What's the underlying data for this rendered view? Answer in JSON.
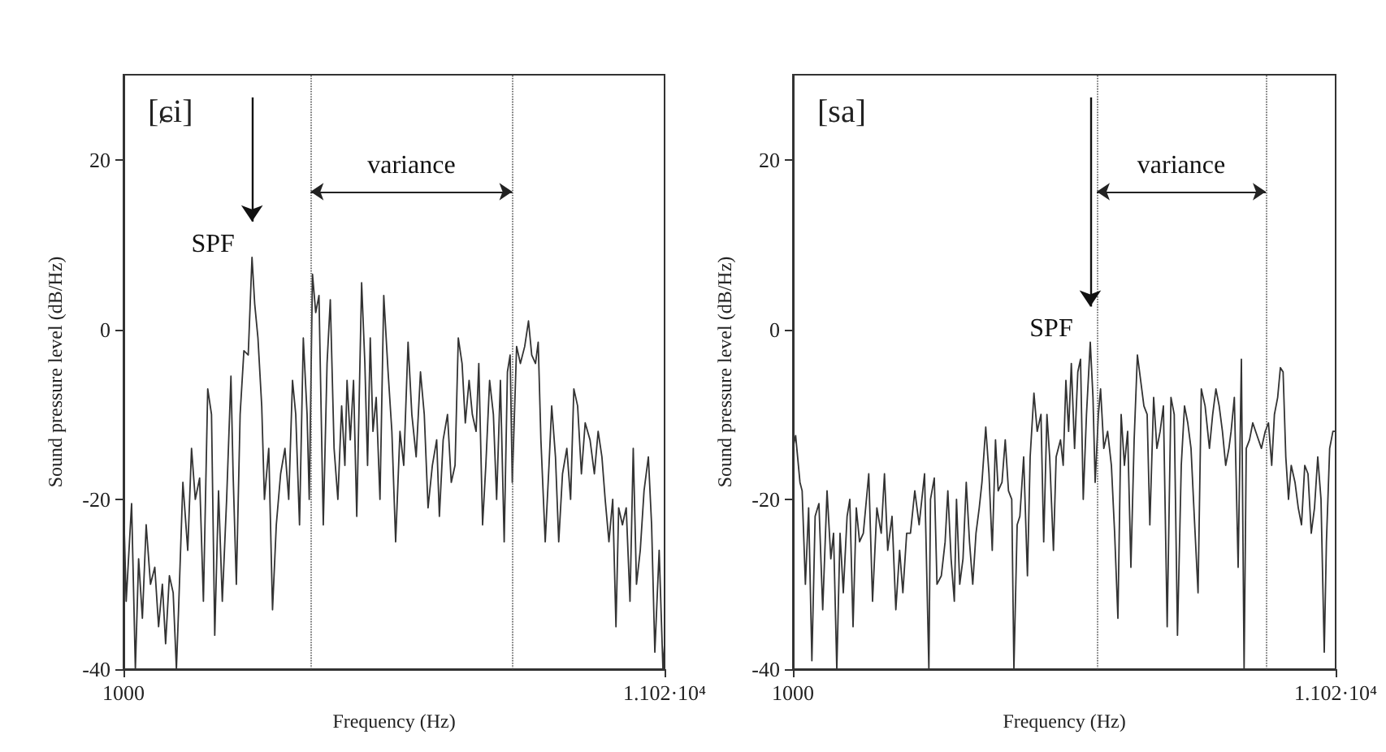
{
  "chart_data": [
    {
      "type": "line",
      "title": "[ɕi]",
      "xlabel": "Frequency (Hz)",
      "ylabel": "Sound pressure level (dB/Hz)",
      "marker": "none",
      "line_style": "solid",
      "xlim": [
        1000,
        11020
      ],
      "ylim": [
        -40,
        30
      ],
      "xticks": [
        1000,
        {
          "value": 11020,
          "label": "1.102·10⁴"
        }
      ],
      "yticks": [
        -40,
        -20,
        0,
        20
      ],
      "x": [
        1000,
        1050,
        1150,
        1220,
        1280,
        1350,
        1420,
        1500,
        1580,
        1650,
        1720,
        1780,
        1850,
        1920,
        1980,
        2020,
        2100,
        2190,
        2260,
        2330,
        2410,
        2480,
        2560,
        2630,
        2690,
        2760,
        2830,
        2910,
        2990,
        3030,
        3090,
        3160,
        3230,
        3310,
        3380,
        3430,
        3490,
        3560,
        3610,
        3690,
        3760,
        3830,
        3910,
        3990,
        4060,
        4130,
        4190,
        4260,
        4330,
        4400,
        4440,
        4500,
        4560,
        4620,
        4700,
        4770,
        4830,
        4900,
        4970,
        5040,
        5100,
        5140,
        5200,
        5260,
        5320,
        5410,
        5470,
        5520,
        5570,
        5620,
        5680,
        5750,
        5820,
        5900,
        5970,
        6040,
        6120,
        6190,
        6270,
        6340,
        6420,
        6500,
        6570,
        6640,
        6720,
        6800,
        6850,
        6920,
        7000,
        7070,
        7140,
        7200,
        7270,
        7330,
        7400,
        7460,
        7530,
        7580,
        7650,
        7710,
        7780,
        7850,
        7910,
        7980,
        8050,
        8110,
        8160,
        8200,
        8280,
        8350,
        8430,
        8500,
        8560,
        8630,
        8680,
        8730,
        8810,
        8880,
        8930,
        9000,
        9060,
        9130,
        9210,
        9280,
        9340,
        9410,
        9480,
        9550,
        9640,
        9720,
        9790,
        9860,
        9920,
        9990,
        10060,
        10120,
        10170,
        10240,
        10310,
        10380,
        10440,
        10500,
        10570,
        10640,
        10720,
        10780,
        10840,
        10920,
        10990,
        11020
      ],
      "series": [
        {
          "color": "#333333",
          "values": [
            -20,
            -32,
            -20.5,
            -40,
            -27,
            -34,
            -23,
            -30,
            -28,
            -35,
            -30,
            -37,
            -29,
            -31,
            -40,
            -33,
            -18,
            -26,
            -14,
            -20,
            -17.5,
            -32,
            -7,
            -10,
            -36,
            -19,
            -32,
            -20,
            -5.5,
            -17,
            -30,
            -10,
            -2.5,
            -3,
            8.5,
            3,
            -1,
            -9,
            -20,
            -14,
            -33,
            -23,
            -17,
            -14,
            -20,
            -6,
            -10,
            -23,
            -1,
            -10,
            -20,
            6.5,
            2,
            4,
            -23,
            -4,
            3.5,
            -14,
            -20,
            -9,
            -16,
            -6,
            -13,
            -6,
            -22,
            5.5,
            -4,
            -16,
            -1,
            -12,
            -8,
            -20,
            4,
            -5,
            -12,
            -25,
            -12,
            -16,
            -1.5,
            -10,
            -15,
            -5,
            -10,
            -21,
            -16,
            -13,
            -22,
            -13,
            -10,
            -18,
            -16,
            -1,
            -4,
            -11,
            -6,
            -10,
            -12,
            -4,
            -23,
            -16,
            -6,
            -10,
            -20,
            -6,
            -25,
            -5,
            -3,
            -18,
            -2,
            -4,
            -2,
            1,
            -3,
            -4,
            -1.5,
            -13,
            -25,
            -16,
            -9,
            -15,
            -25,
            -17,
            -14,
            -20,
            -7,
            -9,
            -17,
            -11,
            -13,
            -17,
            -12,
            -15,
            -20,
            -25,
            -20,
            -35,
            -21,
            -23,
            -21,
            -32,
            -14,
            -30,
            -26,
            -19,
            -15,
            -23,
            -38,
            -26,
            -40,
            -37
          ]
        }
      ],
      "ref_lines": [
        {
          "axis": "x",
          "value": 4465,
          "line_style": "dotted",
          "color": "#555555"
        },
        {
          "axis": "x",
          "value": 8200,
          "line_style": "dotted",
          "color": "#555555"
        }
      ],
      "annotations": [
        {
          "text": "SPF",
          "x": 3380,
          "y": 8.5
        },
        "variance"
      ]
    },
    {
      "type": "line",
      "title": "[sa]",
      "xlabel": "Frequency (Hz)",
      "ylabel": "Sound pressure level (dB/Hz)",
      "marker": "none",
      "line_style": "solid",
      "xlim": [
        1000,
        11020
      ],
      "ylim": [
        -40,
        30
      ],
      "xticks": [
        1000,
        {
          "value": 11020,
          "label": "1.102·10⁴"
        }
      ],
      "yticks": [
        -40,
        -20,
        0,
        20
      ],
      "x": [
        1000,
        1050,
        1130,
        1170,
        1230,
        1290,
        1350,
        1410,
        1480,
        1550,
        1630,
        1700,
        1750,
        1810,
        1870,
        1930,
        2000,
        2050,
        2110,
        2170,
        2230,
        2300,
        2400,
        2470,
        2550,
        2630,
        2690,
        2750,
        2830,
        2900,
        2970,
        3030,
        3100,
        3170,
        3250,
        3330,
        3430,
        3510,
        3540,
        3610,
        3660,
        3740,
        3810,
        3860,
        3920,
        3980,
        4020,
        4080,
        4140,
        4200,
        4260,
        4320,
        4380,
        4440,
        4490,
        4560,
        4620,
        4680,
        4740,
        4790,
        4860,
        4920,
        4980,
        5040,
        5080,
        5140,
        5190,
        5260,
        5330,
        5380,
        5450,
        5510,
        5580,
        5630,
        5690,
        5740,
        5810,
        5860,
        5940,
        5990,
        6040,
        6090,
        6140,
        6200,
        6260,
        6310,
        6360,
        6420,
        6490,
        6540,
        6580,
        6640,
        6680,
        6740,
        6810,
        6880,
        6940,
        7000,
        7060,
        7120,
        7180,
        7240,
        7300,
        7360,
        7420,
        7480,
        7540,
        7590,
        7660,
        7720,
        7780,
        7840,
        7910,
        7980,
        8040,
        8100,
        8170,
        8230,
        8290,
        8350,
        8410,
        8480,
        8540,
        8610,
        8690,
        8750,
        8810,
        8870,
        8930,
        8990,
        9050,
        9090,
        9150,
        9220,
        9280,
        9330,
        9370,
        9430,
        9490,
        9570,
        9650,
        9720,
        9780,
        9840,
        9890,
        9950,
        10000,
        10050,
        10100,
        10150,
        10200,
        10270,
        10330,
        10390,
        10450,
        10510,
        10570,
        10630,
        10690,
        10750,
        10810,
        10850,
        10910,
        10970,
        11020
      ],
      "series": [
        {
          "color": "#333333",
          "values": [
            -14,
            -12.5,
            -18,
            -19,
            -30,
            -21,
            -39,
            -22,
            -20.5,
            -33,
            -19,
            -27,
            -24,
            -40,
            -24,
            -31,
            -22,
            -20,
            -35,
            -21,
            -25,
            -24,
            -17,
            -32,
            -21,
            -24,
            -17,
            -26,
            -22,
            -33,
            -26,
            -31,
            -24,
            -24,
            -19,
            -23,
            -17,
            -40,
            -20,
            -17.5,
            -30,
            -29,
            -25,
            -19,
            -27,
            -32,
            -20,
            -30,
            -27,
            -18,
            -25,
            -30,
            -24,
            -21,
            -18,
            -11.5,
            -17,
            -26,
            -13,
            -19,
            -18,
            -13,
            -19,
            -20,
            -40,
            -23,
            -22,
            -15,
            -29,
            -15,
            -7.5,
            -12,
            -10,
            -25,
            -10,
            -15,
            -26,
            -15,
            -13,
            -16,
            -6,
            -12,
            -4,
            -14,
            -5,
            -3.5,
            -20,
            -10,
            -1.5,
            -8,
            -18,
            -10,
            -7,
            -14,
            -12,
            -16,
            -24,
            -34,
            -10,
            -16,
            -12,
            -28,
            -13,
            -3,
            -6,
            -9,
            -10,
            -23,
            -8,
            -14,
            -12,
            -9,
            -35,
            -8,
            -10,
            -36,
            -16,
            -9,
            -11,
            -14,
            -22,
            -31,
            -7,
            -9,
            -14,
            -10,
            -7,
            -9,
            -12,
            -16,
            -14,
            -12,
            -8,
            -28,
            -3.5,
            -40,
            -14,
            -13,
            -11,
            -12.5,
            -14,
            -12,
            -11,
            -16,
            -10,
            -8,
            -4.5,
            -5,
            -15,
            -20,
            -16,
            -18,
            -21,
            -23,
            -16,
            -17,
            -24,
            -21,
            -15,
            -20,
            -38,
            -25,
            -14,
            -12,
            -12
          ]
        }
      ],
      "ref_lines": [
        {
          "axis": "x",
          "value": 6610,
          "line_style": "dotted",
          "color": "#555555"
        },
        {
          "axis": "x",
          "value": 9730,
          "line_style": "dotted",
          "color": "#555555"
        }
      ],
      "annotations": [
        {
          "text": "SPF",
          "x": 6490,
          "y": -1.5
        },
        "variance"
      ]
    }
  ]
}
